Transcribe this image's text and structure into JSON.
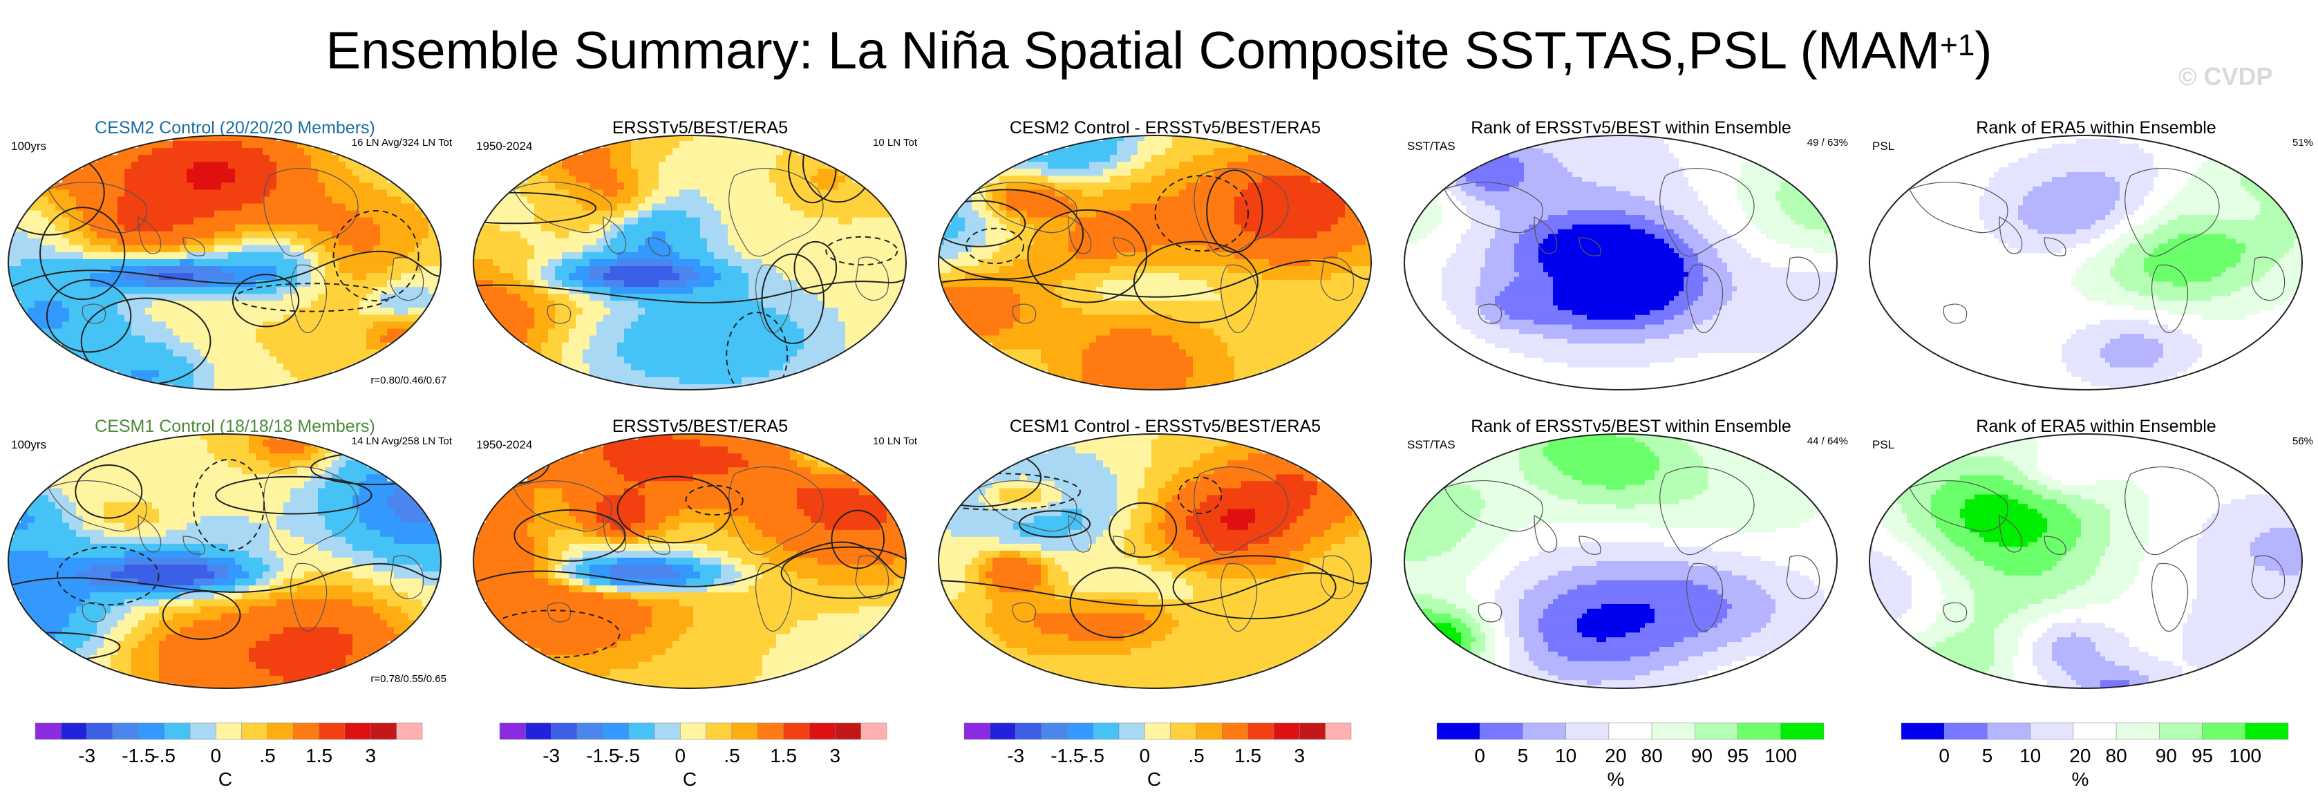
{
  "title": {
    "main": "Ensemble Summary: La Niña Spatial Composite SST,TAS,PSL (MAM",
    "sup": "+1",
    "close": ")"
  },
  "watermark": "© CVDP",
  "colors": {
    "cesm2_title": "#1a6fa0",
    "cesm1_title": "#4c8a3c",
    "diverging": [
      "#8a2be2",
      "#2222dd",
      "#3b5fe6",
      "#4a86ee",
      "#3399ff",
      "#46c3f6",
      "#a8d8f4",
      "#fff4a0",
      "#ffd23c",
      "#ffac10",
      "#ff7a10",
      "#f24010",
      "#e01010",
      "#c41818",
      "#ffb0b0"
    ],
    "rank": [
      "#0000ee",
      "#7777ff",
      "#b4b4ff",
      "#e4e4ff",
      "#ffffff",
      "#e4ffe4",
      "#b4ffb4",
      "#6cff6c",
      "#00ee00"
    ],
    "land_outline": "#555555",
    "contour": "#222222"
  },
  "rows": [
    {
      "panels": [
        {
          "title": "CESM2 Control (20/20/20 Members)",
          "left": "100yrs",
          "right": "16 LN Avg/324 LN Tot",
          "corr": "r=0.80/0.46/0.67"
        },
        {
          "title": "ERSSTv5/BEST/ERA5",
          "left": "1950-2024",
          "right": "10 LN Tot"
        },
        {
          "title": "CESM2 Control - ERSSTv5/BEST/ERA5"
        },
        {
          "title": "Rank of ERSSTv5/BEST within Ensemble",
          "left": "SST/TAS",
          "right": "49 /  63%"
        },
        {
          "title": "Rank of ERA5 within Ensemble",
          "left": "PSL",
          "right": "51%"
        }
      ]
    },
    {
      "panels": [
        {
          "title": "CESM1 Control (18/18/18 Members)",
          "left": "100yrs",
          "right": "14 LN Avg/258 LN Tot",
          "corr": "r=0.78/0.55/0.65"
        },
        {
          "title": "ERSSTv5/BEST/ERA5",
          "left": "1950-2024",
          "right": "10 LN Tot"
        },
        {
          "title": "CESM1 Control - ERSSTv5/BEST/ERA5"
        },
        {
          "title": "Rank of ERSSTv5/BEST within Ensemble",
          "left": "SST/TAS",
          "right": "44 /  64%"
        },
        {
          "title": "Rank of ERA5 within Ensemble",
          "left": "PSL",
          "right": "56%"
        }
      ]
    }
  ],
  "colorbars": {
    "diverging": {
      "ticks": [
        "-3",
        "-1.5",
        "-.5",
        "0",
        ".5",
        "1.5",
        "3"
      ],
      "unit": "C"
    },
    "rank": {
      "ticks": [
        "0",
        "5",
        "10",
        "20",
        "80",
        "90",
        "95",
        "100"
      ],
      "unit": "%"
    }
  },
  "chart_data": {
    "type": "heatmap",
    "title": "Ensemble Summary: La Niña Spatial Composite SST,TAS,PSL (MAM+1)",
    "layout": "2 rows x 5 global maps (Robinson-like projection)",
    "diverging_scale": {
      "unit": "C",
      "levels": [
        -4,
        -3,
        -2,
        -1.5,
        -1,
        -0.5,
        -0.25,
        0,
        0.25,
        0.5,
        1,
        1.5,
        2,
        3,
        4
      ],
      "labeled_ticks": [
        -3,
        -1.5,
        -0.5,
        0,
        0.5,
        1.5,
        3
      ]
    },
    "rank_scale": {
      "unit": "%",
      "levels": [
        0,
        5,
        10,
        20,
        80,
        90,
        95,
        100
      ]
    },
    "panels": [
      {
        "row": 1,
        "name": "CESM2 Control (20/20/20 Members)",
        "period": "100yrs",
        "events": "16 LN Avg/324 LN Tot",
        "pattern_corr": [
          0.8,
          0.46,
          0.67
        ]
      },
      {
        "row": 1,
        "name": "ERSSTv5/BEST/ERA5",
        "period": "1950-2024",
        "events": "10 LN Tot"
      },
      {
        "row": 1,
        "name": "CESM2 Control - ERSSTv5/BEST/ERA5"
      },
      {
        "row": 1,
        "name": "Rank of ERSSTv5/BEST within Ensemble",
        "field": "SST/TAS",
        "rank": 49,
        "percent": 63
      },
      {
        "row": 1,
        "name": "Rank of ERA5 within Ensemble",
        "field": "PSL",
        "percent": 51
      },
      {
        "row": 2,
        "name": "CESM1 Control (18/18/18 Members)",
        "period": "100yrs",
        "events": "14 LN Avg/258 LN Tot",
        "pattern_corr": [
          0.78,
          0.55,
          0.65
        ]
      },
      {
        "row": 2,
        "name": "ERSSTv5/BEST/ERA5",
        "period": "1950-2024",
        "events": "10 LN Tot"
      },
      {
        "row": 2,
        "name": "CESM1 Control - ERSSTv5/BEST/ERA5"
      },
      {
        "row": 2,
        "name": "Rank of ERSSTv5/BEST within Ensemble",
        "field": "SST/TAS",
        "rank": 44,
        "percent": 64
      },
      {
        "row": 2,
        "name": "Rank of ERA5 within Ensemble",
        "field": "PSL",
        "percent": 56
      }
    ]
  }
}
